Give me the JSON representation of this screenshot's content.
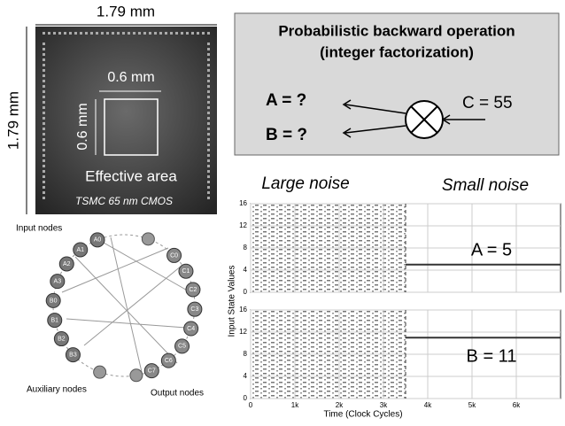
{
  "chip": {
    "width_label": "1.79 mm",
    "height_label": "1.79 mm",
    "area_width_label": "0.6 mm",
    "area_height_label": "0.6 mm",
    "area_caption": "Effective area",
    "process": "TSMC 65 nm CMOS"
  },
  "operation": {
    "title_lines": [
      "Probabilistic backward operation",
      "(integer factorization)"
    ],
    "outputs": [
      "A = ?",
      "B = ?"
    ],
    "input": "C = 55"
  },
  "network": {
    "labels": {
      "input": "Input nodes",
      "auxiliary": "Auxiliary nodes",
      "output": "Output nodes"
    },
    "input_nodes": [
      "A0",
      "A1",
      "A2",
      "A3",
      "B0",
      "B1",
      "B2",
      "B3"
    ],
    "output_nodes": [
      "C0",
      "C1",
      "C2",
      "C3",
      "C4",
      "C5",
      "C6",
      "C7"
    ]
  },
  "raster": {
    "noise_labels": [
      "Large noise",
      "Small noise"
    ],
    "y_label": "Input State Values",
    "x_label": "Time (Clock Cycles)",
    "xlim": [
      0,
      7000
    ],
    "xticks": [
      0,
      {
        "value": 1000,
        "label": "1k"
      },
      {
        "value": 2000,
        "label": "2k"
      },
      {
        "value": 3000,
        "label": "3k"
      },
      {
        "value": 4000,
        "label": "4k"
      },
      {
        "value": 5000,
        "label": "5k"
      },
      {
        "value": 6000,
        "label": "6k"
      }
    ],
    "ylim": [
      0,
      16
    ],
    "yticks": [
      0,
      4,
      8,
      12,
      16
    ],
    "switch_time": 3500,
    "panels": [
      {
        "result": "A = 5",
        "settled_value": 5
      },
      {
        "result": "B = 11",
        "settled_value": 11
      }
    ]
  }
}
